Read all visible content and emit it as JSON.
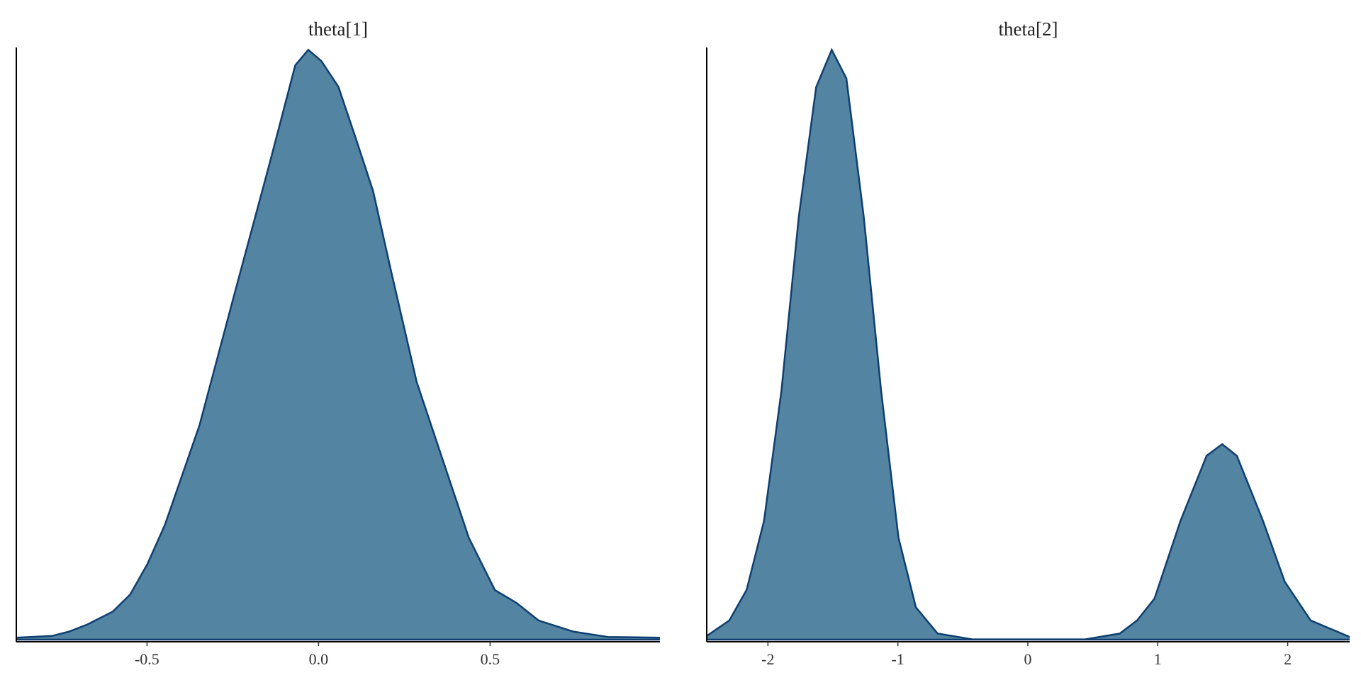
{
  "chart_data": [
    {
      "type": "area",
      "title": "theta[1]",
      "fill": "#5384a2",
      "line_color": "#0f3f70",
      "x": [
        -0.881,
        -0.777,
        -0.727,
        -0.676,
        -0.6,
        -0.549,
        -0.499,
        -0.448,
        -0.347,
        -0.246,
        -0.144,
        -0.068,
        -0.03,
        0.008,
        0.058,
        0.109,
        0.159,
        0.21,
        0.286,
        0.362,
        0.438,
        0.514,
        0.577,
        0.641,
        0.742,
        0.843,
        0.995
      ],
      "values": [
        0.008,
        0.013,
        0.026,
        0.046,
        0.085,
        0.136,
        0.226,
        0.342,
        0.638,
        1.024,
        1.409,
        1.705,
        1.751,
        1.718,
        1.641,
        1.487,
        1.332,
        1.101,
        0.766,
        0.535,
        0.304,
        0.149,
        0.111,
        0.059,
        0.026,
        0.01,
        0.008
      ],
      "xlim": [
        -0.881,
        0.995
      ],
      "ylim": [
        0,
        1.8
      ],
      "xticks": [
        {
          "value": -0.5,
          "label": "-0.5"
        },
        {
          "value": 0,
          "label": "0.0"
        },
        {
          "value": 0.5,
          "label": "0.5"
        }
      ]
    },
    {
      "type": "area",
      "title": "theta[2]",
      "fill": "#5384a2",
      "line_color": "#0f3f70",
      "x": [
        -2.471,
        -2.297,
        -2.164,
        -2.03,
        -1.896,
        -1.763,
        -1.629,
        -1.509,
        -1.396,
        -1.262,
        -1.129,
        -0.995,
        -0.861,
        -0.694,
        -0.427,
        0.441,
        0.708,
        0.841,
        0.975,
        1.175,
        1.376,
        1.496,
        1.609,
        1.81,
        1.977,
        2.177,
        2.477
      ],
      "values": [
        0.009,
        0.041,
        0.104,
        0.246,
        0.514,
        0.871,
        1.139,
        1.216,
        1.157,
        0.871,
        0.514,
        0.211,
        0.068,
        0.014,
        0.002,
        0.002,
        0.014,
        0.041,
        0.086,
        0.246,
        0.38,
        0.404,
        0.38,
        0.246,
        0.121,
        0.041,
        0.007
      ],
      "xlim": [
        -2.471,
        2.477
      ],
      "ylim": [
        0,
        1.25
      ],
      "xticks": [
        -2,
        -1,
        0,
        1,
        2
      ]
    }
  ]
}
